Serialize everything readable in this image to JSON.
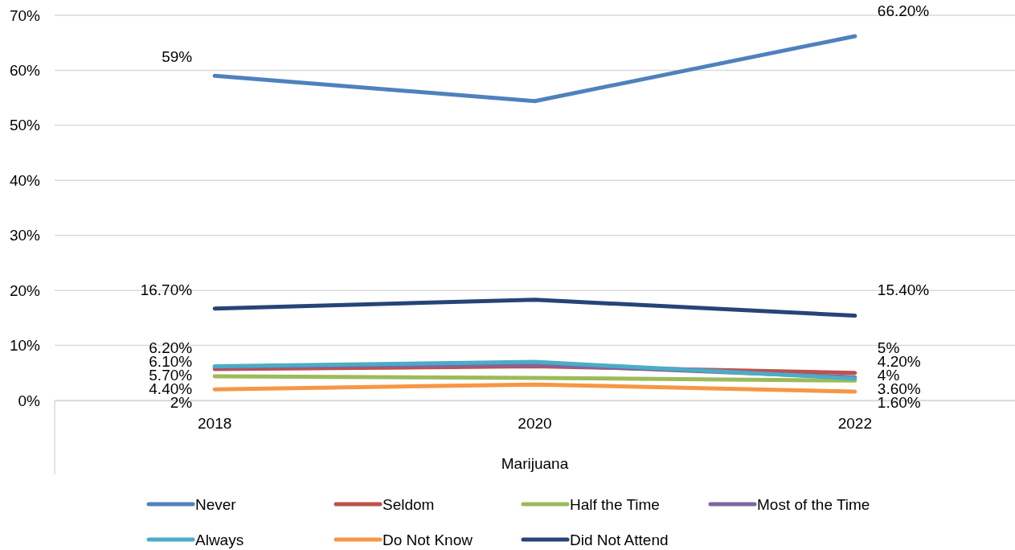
{
  "chart_data": {
    "type": "line",
    "categories": [
      "2018",
      "2020",
      "2022"
    ],
    "xlabel": "Marijuana",
    "ylim": [
      0,
      70
    ],
    "yticks": [
      {
        "value": 0,
        "label": "0%"
      },
      {
        "value": 10,
        "label": "10%"
      },
      {
        "value": 20,
        "label": "20%"
      },
      {
        "value": 30,
        "label": "30%"
      },
      {
        "value": 40,
        "label": "40%"
      },
      {
        "value": 50,
        "label": "50%"
      },
      {
        "value": 60,
        "label": "60%"
      },
      {
        "value": 70,
        "label": "70%"
      }
    ],
    "grid": "y",
    "legend": "bottom",
    "marker": "none",
    "line_style": "solid",
    "series": [
      {
        "name": "Never",
        "color": "#4f81bd",
        "values": [
          59,
          54.4,
          66.2
        ],
        "value_labels": [
          "59%",
          null,
          "66.20%"
        ]
      },
      {
        "name": "Seldom",
        "color": "#c0504d",
        "values": [
          5.7,
          6.2,
          5
        ],
        "value_labels": [
          "5.70%",
          null,
          "5%"
        ]
      },
      {
        "name": "Half the Time",
        "color": "#9bbb59",
        "values": [
          4.4,
          4.1,
          3.6
        ],
        "value_labels": [
          "4.40%",
          null,
          "3.60%"
        ]
      },
      {
        "name": "Most of the Time",
        "color": "#8064a2",
        "values": [
          6.1,
          6.5,
          4.2
        ],
        "value_labels": [
          "6.10%",
          null,
          "4.20%"
        ]
      },
      {
        "name": "Always",
        "color": "#4bacc6",
        "values": [
          6.2,
          7,
          4
        ],
        "value_labels": [
          "6.20%",
          null,
          "4%"
        ]
      },
      {
        "name": "Do Not Know",
        "color": "#f79646",
        "values": [
          2,
          2.9,
          1.6
        ],
        "value_labels": [
          "2%",
          null,
          "1.60%"
        ]
      },
      {
        "name": "Did Not Attend",
        "color": "#264478",
        "values": [
          16.7,
          18.3,
          15.4
        ],
        "value_labels": [
          "16.70%",
          null,
          "15.40%"
        ]
      }
    ]
  }
}
